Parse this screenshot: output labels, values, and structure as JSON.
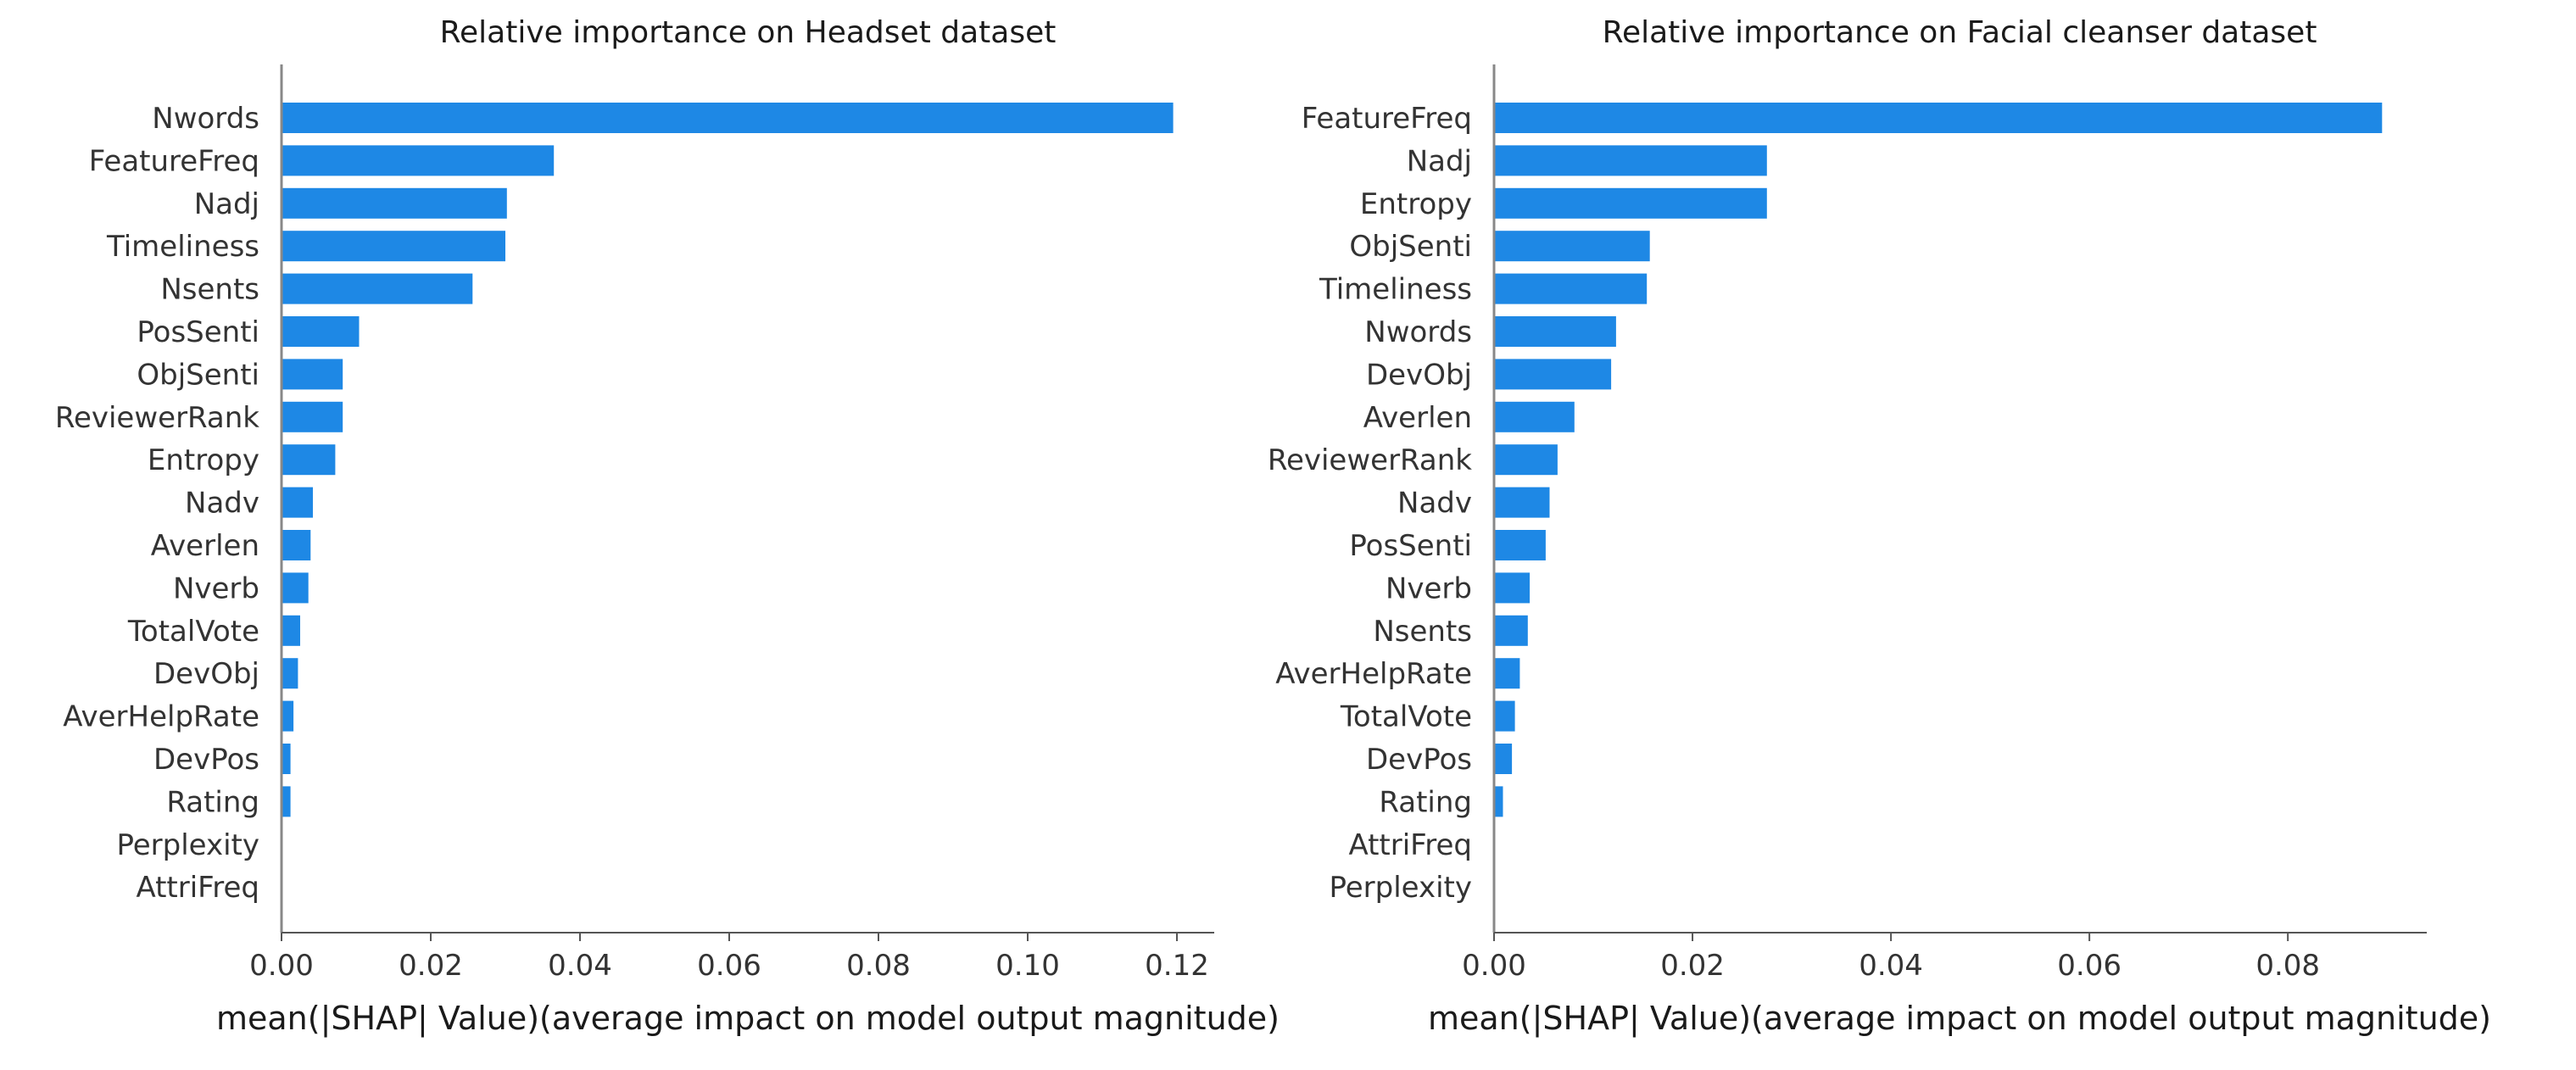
{
  "chart_data": [
    {
      "type": "bar",
      "orientation": "horizontal",
      "title": "Relative importance on Headset dataset",
      "xlabel": "mean(|SHAP| Value)(average impact on model output magnitude)",
      "ylabel": "",
      "xlim": [
        0,
        0.125
      ],
      "xticks": [
        0.0,
        0.02,
        0.04,
        0.06,
        0.08,
        0.1,
        0.12
      ],
      "xtick_labels": [
        "0.00",
        "0.02",
        "0.04",
        "0.06",
        "0.08",
        "0.10",
        "0.12"
      ],
      "bar_color": "#1e88e5",
      "categories": [
        "Nwords",
        "FeatureFreq",
        "Nadj",
        "Timeliness",
        "Nsents",
        "PosSenti",
        "ObjSenti",
        "ReviewerRank",
        "Entropy",
        "Nadv",
        "Averlen",
        "Nverb",
        "TotalVote",
        "DevObj",
        "AverHelpRate",
        "DevPos",
        "Rating",
        "Perplexity",
        "AttriFreq"
      ],
      "values": [
        0.1195,
        0.0365,
        0.0302,
        0.03,
        0.0256,
        0.0104,
        0.0082,
        0.0082,
        0.0072,
        0.0042,
        0.0039,
        0.0036,
        0.0025,
        0.0022,
        0.0016,
        0.0012,
        0.0012,
        0.0,
        0.0
      ]
    },
    {
      "type": "bar",
      "orientation": "horizontal",
      "title": "Relative importance on Facial cleanser dataset",
      "xlabel": "mean(|SHAP| Value)(average impact on model output magnitude)",
      "ylabel": "",
      "xlim": [
        0,
        0.094
      ],
      "xticks": [
        0.0,
        0.02,
        0.04,
        0.06,
        0.08
      ],
      "xtick_labels": [
        "0.00",
        "0.02",
        "0.04",
        "0.06",
        "0.08"
      ],
      "bar_color": "#1e88e5",
      "categories": [
        "FeatureFreq",
        "Nadj",
        "Entropy",
        "ObjSenti",
        "Timeliness",
        "Nwords",
        "DevObj",
        "Averlen",
        "ReviewerRank",
        "Nadv",
        "PosSenti",
        "Nverb",
        "Nsents",
        "AverHelpRate",
        "TotalVote",
        "DevPos",
        "Rating",
        "AttriFreq",
        "Perplexity"
      ],
      "values": [
        0.0895,
        0.0275,
        0.0275,
        0.0157,
        0.0154,
        0.0123,
        0.0118,
        0.0081,
        0.0064,
        0.0056,
        0.0052,
        0.0036,
        0.0034,
        0.0026,
        0.0021,
        0.0018,
        0.0009,
        0.0,
        0.0
      ]
    }
  ]
}
